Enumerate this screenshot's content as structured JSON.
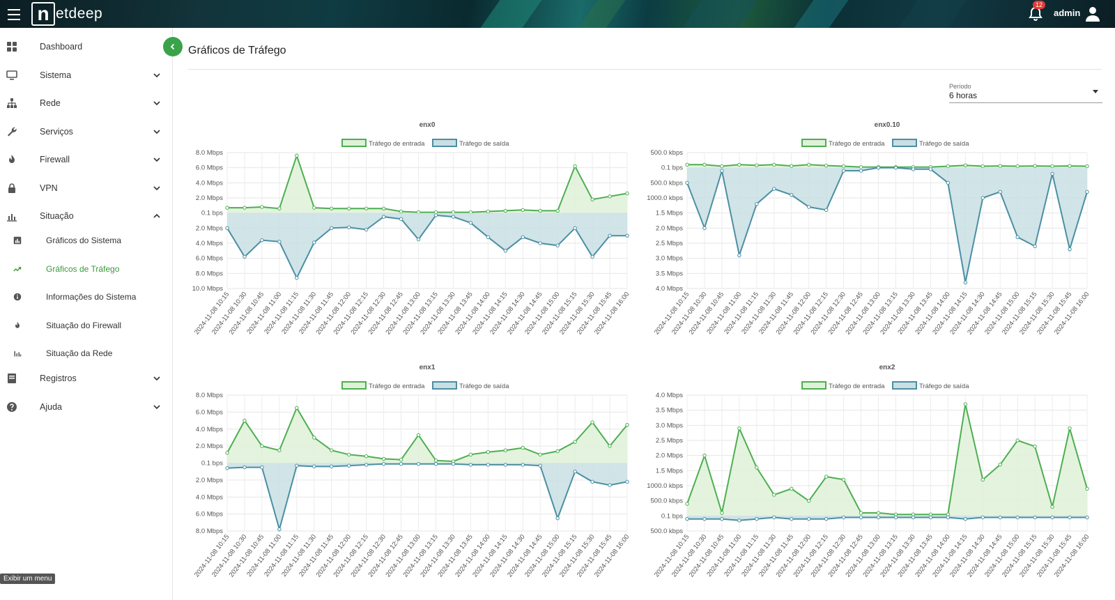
{
  "app": {
    "logo_letter": "n",
    "logo_text": "etdeep"
  },
  "header": {
    "notifications_count": "12",
    "user_name": "admin"
  },
  "sidebar": {
    "items": [
      {
        "label": "Dashboard",
        "icon": "dashboard-icon",
        "chevron": ""
      },
      {
        "label": "Sistema",
        "icon": "monitor-icon",
        "chevron": "down"
      },
      {
        "label": "Rede",
        "icon": "network-icon",
        "chevron": "down"
      },
      {
        "label": "Serviços",
        "icon": "wrench-icon",
        "chevron": "down"
      },
      {
        "label": "Firewall",
        "icon": "flame-icon",
        "chevron": "down"
      },
      {
        "label": "VPN",
        "icon": "lock-icon",
        "chevron": "down"
      },
      {
        "label": "Situação",
        "icon": "bar-chart-icon",
        "chevron": "up"
      }
    ],
    "subitems": [
      {
        "label": "Gráficos do Sistema",
        "icon": "chart-icon",
        "active": false
      },
      {
        "label": "Gráficos de Tráfego",
        "icon": "trend-icon",
        "active": true
      },
      {
        "label": "Informações do Sistema",
        "icon": "info-icon",
        "active": false
      },
      {
        "label": "Situação do Firewall",
        "icon": "flame-icon",
        "active": false
      },
      {
        "label": "Situação da Rede",
        "icon": "bars-icon",
        "active": false
      }
    ],
    "bottom_items": [
      {
        "label": "Registros",
        "icon": "book-icon",
        "chevron": "down"
      },
      {
        "label": "Ajuda",
        "icon": "help-icon",
        "chevron": "down"
      }
    ],
    "tooltip": "Exibir um menu"
  },
  "main": {
    "title": "Gráficos de Tráfego",
    "period": {
      "label": "Período",
      "value": "6 horas"
    }
  },
  "colors": {
    "in_line": "#4caf50",
    "in_fill": "#dff1d8",
    "out_line": "#4a8fa3",
    "out_fill": "#c9dfe4",
    "accent": "#3aa34a"
  },
  "legend": {
    "in": "Tráfego de entrada",
    "out": "Tráfego de saída"
  },
  "chart_data": [
    {
      "type": "area",
      "title": "enx0",
      "x": [
        "2024-11-08 10:15",
        "2024-11-08 10:30",
        "2024-11-08 10:45",
        "2024-11-08 11:00",
        "2024-11-08 11:15",
        "2024-11-08 11:30",
        "2024-11-08 11:45",
        "2024-11-08 12:00",
        "2024-11-08 12:15",
        "2024-11-08 12:30",
        "2024-11-08 12:45",
        "2024-11-08 13:00",
        "2024-11-08 13:15",
        "2024-11-08 13:30",
        "2024-11-08 13:45",
        "2024-11-08 14:00",
        "2024-11-08 14:15",
        "2024-11-08 14:30",
        "2024-11-08 14:45",
        "2024-11-08 15:00",
        "2024-11-08 15:15",
        "2024-11-08 15:30",
        "2024-11-08 15:45",
        "2024-11-08 16:00"
      ],
      "y_ticks": [
        "8.0 Mbps",
        "6.0 Mbps",
        "4.0 Mbps",
        "2.0 Mbps",
        "0.1 bps",
        "2.0 Mbps",
        "4.0 Mbps",
        "6.0 Mbps",
        "8.0 Mbps",
        "10.0 Mbps"
      ],
      "y_unit": "Mbps",
      "ylim": [
        -10,
        8
      ],
      "series": [
        {
          "name": "Tráfego de entrada",
          "values": [
            0.7,
            0.7,
            0.8,
            0.6,
            7.6,
            0.7,
            0.6,
            0.6,
            0.6,
            0.6,
            0.2,
            0.1,
            0.1,
            0.1,
            0.1,
            0.2,
            0.3,
            0.4,
            0.3,
            0.3,
            6.2,
            1.8,
            2.2,
            2.6
          ]
        },
        {
          "name": "Tráfego de saída",
          "values": [
            -2.0,
            -5.8,
            -3.6,
            -3.8,
            -8.6,
            -3.9,
            -2.0,
            -1.9,
            -2.2,
            -0.5,
            -0.8,
            -3.5,
            -0.3,
            -0.5,
            -1.3,
            -3.2,
            -5.0,
            -3.2,
            -4.0,
            -4.3,
            -2.0,
            -5.8,
            -3.0,
            -3.0
          ]
        }
      ]
    },
    {
      "type": "area",
      "title": "enx0.10",
      "x": [
        "2024-11-08 10:15",
        "2024-11-08 10:30",
        "2024-11-08 10:45",
        "2024-11-08 11:00",
        "2024-11-08 11:15",
        "2024-11-08 11:30",
        "2024-11-08 11:45",
        "2024-11-08 12:00",
        "2024-11-08 12:15",
        "2024-11-08 12:30",
        "2024-11-08 12:45",
        "2024-11-08 13:00",
        "2024-11-08 13:15",
        "2024-11-08 13:30",
        "2024-11-08 13:45",
        "2024-11-08 14:00",
        "2024-11-08 14:15",
        "2024-11-08 14:30",
        "2024-11-08 14:45",
        "2024-11-08 15:00",
        "2024-11-08 15:15",
        "2024-11-08 15:30",
        "2024-11-08 15:45",
        "2024-11-08 16:00"
      ],
      "y_ticks": [
        "500.0 kbps",
        "0.1 bps",
        "500.0 kbps",
        "1000.0 kbps",
        "1.5 Mbps",
        "2.0 Mbps",
        "2.5 Mbps",
        "3.0 Mbps",
        "3.5 Mbps",
        "4.0 Mbps"
      ],
      "y_unit": "Mbps",
      "ylim": [
        -4,
        0.5
      ],
      "series": [
        {
          "name": "Tráfego de entrada",
          "values": [
            0.1,
            0.1,
            0.05,
            0.1,
            0.08,
            0.1,
            0.06,
            0.1,
            0.07,
            0.05,
            0.02,
            0.02,
            0.02,
            0.02,
            0.02,
            0.05,
            0.08,
            0.05,
            0.06,
            0.05,
            0.06,
            0.05,
            0.06,
            0.05
          ]
        },
        {
          "name": "Tráfego de saída",
          "values": [
            -0.5,
            -2.0,
            -0.1,
            -2.9,
            -1.2,
            -0.7,
            -0.9,
            -1.3,
            -1.4,
            -0.1,
            -0.1,
            0.0,
            0.0,
            -0.05,
            -0.05,
            -0.5,
            -3.8,
            -1.0,
            -0.8,
            -2.3,
            -2.6,
            -0.2,
            -2.7,
            -0.8
          ]
        }
      ]
    },
    {
      "type": "area",
      "title": "enx1",
      "x": [
        "2024-11-08 10:15",
        "2024-11-08 10:30",
        "2024-11-08 10:45",
        "2024-11-08 11:00",
        "2024-11-08 11:15",
        "2024-11-08 11:30",
        "2024-11-08 11:45",
        "2024-11-08 12:00",
        "2024-11-08 12:15",
        "2024-11-08 12:30",
        "2024-11-08 12:45",
        "2024-11-08 13:00",
        "2024-11-08 13:15",
        "2024-11-08 13:30",
        "2024-11-08 13:45",
        "2024-11-08 14:00",
        "2024-11-08 14:15",
        "2024-11-08 14:30",
        "2024-11-08 14:45",
        "2024-11-08 15:00",
        "2024-11-08 15:15",
        "2024-11-08 15:30",
        "2024-11-08 15:45",
        "2024-11-08 16:00"
      ],
      "y_ticks": [
        "8.0 Mbps",
        "6.0 Mbps",
        "4.0 Mbps",
        "2.0 Mbps",
        "0.1 bps",
        "2.0 Mbps",
        "4.0 Mbps",
        "6.0 Mbps",
        "8.0 Mbps"
      ],
      "y_unit": "Mbps",
      "ylim": [
        -8,
        8
      ],
      "series": [
        {
          "name": "Tráfego de entrada",
          "values": [
            1.2,
            5.0,
            2.0,
            1.5,
            6.5,
            3.0,
            1.5,
            1.0,
            0.8,
            0.5,
            0.4,
            3.3,
            0.3,
            0.2,
            1.0,
            1.3,
            1.5,
            1.8,
            1.0,
            1.4,
            2.5,
            4.8,
            2.0,
            4.5
          ]
        },
        {
          "name": "Tráfego de saída",
          "values": [
            -0.6,
            -0.5,
            -0.5,
            -7.8,
            -0.3,
            -0.4,
            -0.4,
            -0.3,
            -0.2,
            -0.1,
            -0.1,
            -0.1,
            -0.1,
            -0.1,
            -0.2,
            -0.2,
            -0.2,
            -0.2,
            -0.3,
            -6.5,
            -1.0,
            -2.2,
            -2.6,
            -2.2
          ]
        }
      ]
    },
    {
      "type": "area",
      "title": "enx2",
      "x": [
        "2024-11-08 10:15",
        "2024-11-08 10:30",
        "2024-11-08 10:45",
        "2024-11-08 11:00",
        "2024-11-08 11:15",
        "2024-11-08 11:30",
        "2024-11-08 11:45",
        "2024-11-08 12:00",
        "2024-11-08 12:15",
        "2024-11-08 12:30",
        "2024-11-08 12:45",
        "2024-11-08 13:00",
        "2024-11-08 13:15",
        "2024-11-08 13:30",
        "2024-11-08 13:45",
        "2024-11-08 14:00",
        "2024-11-08 14:15",
        "2024-11-08 14:30",
        "2024-11-08 14:45",
        "2024-11-08 15:00",
        "2024-11-08 15:15",
        "2024-11-08 15:30",
        "2024-11-08 15:45",
        "2024-11-08 16:00"
      ],
      "y_ticks": [
        "4.0 Mbps",
        "3.5 Mbps",
        "3.0 Mbps",
        "2.5 Mbps",
        "2.0 Mbps",
        "1.5 Mbps",
        "1000.0 kbps",
        "500.0 kbps",
        "0.1 bps",
        "500.0 kbps"
      ],
      "y_unit": "Mbps",
      "ylim": [
        -0.5,
        4
      ],
      "series": [
        {
          "name": "Tráfego de entrada",
          "values": [
            0.4,
            2.0,
            0.1,
            2.9,
            1.6,
            0.7,
            0.9,
            0.5,
            1.3,
            1.2,
            0.1,
            0.1,
            0.05,
            0.05,
            0.05,
            0.05,
            3.7,
            1.2,
            1.7,
            2.5,
            2.3,
            0.3,
            2.9,
            0.9
          ]
        },
        {
          "name": "Tráfego de saída",
          "values": [
            -0.1,
            -0.1,
            -0.1,
            -0.15,
            -0.1,
            -0.05,
            -0.1,
            -0.1,
            -0.1,
            -0.05,
            -0.05,
            -0.05,
            -0.05,
            -0.05,
            -0.05,
            -0.05,
            -0.1,
            -0.05,
            -0.05,
            -0.05,
            -0.05,
            -0.05,
            -0.05,
            -0.05
          ]
        }
      ]
    }
  ]
}
